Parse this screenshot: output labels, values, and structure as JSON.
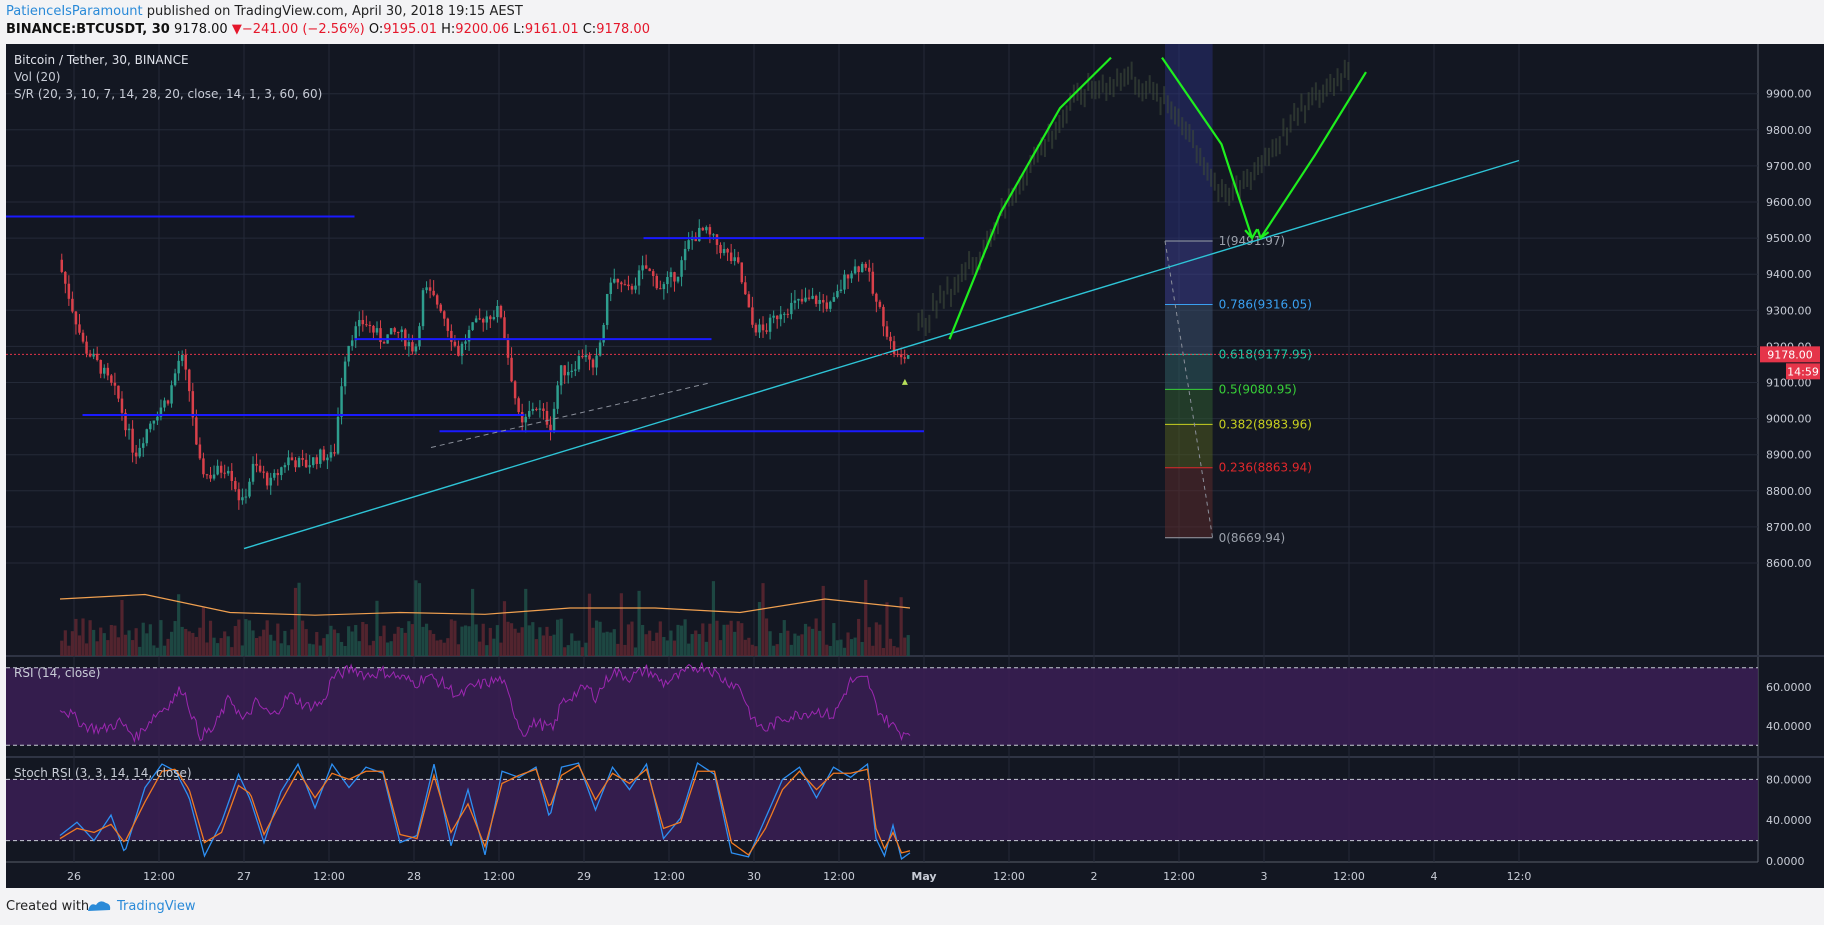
{
  "header": {
    "author": "PatienceIsParamount",
    "published": " published on TradingView.com, April 30, 2018 19:15 AEST",
    "symbol": "BINANCE:BTCUSDT, 30",
    "last": "9178.00",
    "change": "−241.00 (−2.56%)",
    "o_label": "O:",
    "o_val": "9195.01",
    "h_label": "H:",
    "h_val": "9200.06",
    "l_label": "L:",
    "l_val": "9161.01",
    "c_label": "C:",
    "c_val": "9178.00"
  },
  "legend": {
    "title": "Bitcoin / Tether, 30, BINANCE",
    "vol": "Vol (20)",
    "sr": "S/R (20, 3, 10, 7, 14, 28, 20, close, 14, 1, 3, 60, 60)",
    "rsi": "RSI (14, close)",
    "stoch": "Stoch RSI (3, 3, 14, 14, close)"
  },
  "colors": {
    "bg": "#131722",
    "up": "#2e9e8e",
    "down": "#d9404a",
    "sr_line": "#1a1aff",
    "trend": "#2ec4d6",
    "projection": "#1eee1e",
    "rsi": "#9c27b0",
    "stoch_k": "#2d8ff2",
    "stoch_d": "#f07a22",
    "vol_ma": "#f0a050",
    "price_tag": "#e5354a"
  },
  "footer": {
    "created": "Created with",
    "brand": "TradingView"
  },
  "chart_data": [
    {
      "type": "candlestick",
      "title": "Bitcoin / Tether, 30, BINANCE",
      "x_ticks": [
        "26",
        "12:00",
        "27",
        "12:00",
        "28",
        "12:00",
        "29",
        "12:00",
        "30",
        "12:00",
        "May",
        "12:00",
        "2",
        "12:00",
        "3",
        "12:00",
        "4",
        "12:0"
      ],
      "y_ticks": [
        "9900.00",
        "9800.00",
        "9700.00",
        "9600.00",
        "9500.00",
        "9400.00",
        "9300.00",
        "9200.00",
        "9100.00",
        "9000.00",
        "8900.00",
        "8800.00",
        "8700.00",
        "8600.00"
      ],
      "ylim": [
        8510,
        9990
      ],
      "last_price": "9178.00",
      "countdown": "14:59",
      "close_path": [
        [
          0,
          9440
        ],
        [
          0.15,
          9200
        ],
        [
          0.25,
          9140
        ],
        [
          0.35,
          9060
        ],
        [
          0.45,
          8900
        ],
        [
          0.55,
          9000
        ],
        [
          0.65,
          9060
        ],
        [
          0.72,
          9180
        ],
        [
          0.78,
          9060
        ],
        [
          0.82,
          8880
        ],
        [
          0.88,
          8840
        ],
        [
          1.0,
          8870
        ],
        [
          1.08,
          8760
        ],
        [
          1.15,
          8870
        ],
        [
          1.25,
          8820
        ],
        [
          1.35,
          8890
        ],
        [
          1.45,
          8870
        ],
        [
          1.55,
          8900
        ],
        [
          1.62,
          8890
        ],
        [
          1.68,
          9160
        ],
        [
          1.72,
          9230
        ],
        [
          1.8,
          9270
        ],
        [
          1.9,
          9220
        ],
        [
          2.0,
          9240
        ],
        [
          2.1,
          9190
        ],
        [
          2.15,
          9360
        ],
        [
          2.25,
          9310
        ],
        [
          2.35,
          9180
        ],
        [
          2.42,
          9240
        ],
        [
          2.5,
          9280
        ],
        [
          2.6,
          9300
        ],
        [
          2.72,
          8970
        ],
        [
          2.8,
          9040
        ],
        [
          2.9,
          8980
        ],
        [
          2.95,
          9130
        ],
        [
          3.02,
          9140
        ],
        [
          3.1,
          9190
        ],
        [
          3.15,
          9120
        ],
        [
          3.2,
          9240
        ],
        [
          3.25,
          9390
        ],
        [
          3.35,
          9350
        ],
        [
          3.45,
          9420
        ],
        [
          3.55,
          9360
        ],
        [
          3.65,
          9410
        ],
        [
          3.72,
          9500
        ],
        [
          3.8,
          9520
        ],
        [
          3.9,
          9470
        ],
        [
          4.0,
          9420
        ],
        [
          4.08,
          9260
        ],
        [
          4.15,
          9240
        ],
        [
          4.25,
          9300
        ],
        [
          4.35,
          9320
        ],
        [
          4.45,
          9330
        ],
        [
          4.55,
          9310
        ],
        [
          4.65,
          9410
        ],
        [
          4.75,
          9430
        ],
        [
          4.8,
          9330
        ],
        [
          4.85,
          9280
        ],
        [
          4.9,
          9200
        ],
        [
          4.95,
          9160
        ],
        [
          5.0,
          9178
        ]
      ],
      "volume_ma": [
        [
          0,
          570
        ],
        [
          0.5,
          575
        ],
        [
          1.0,
          555
        ],
        [
          1.5,
          552
        ],
        [
          2.0,
          555
        ],
        [
          2.5,
          553
        ],
        [
          3.0,
          560
        ],
        [
          3.5,
          560
        ],
        [
          4.0,
          555
        ],
        [
          4.5,
          570
        ],
        [
          5.0,
          560
        ]
      ]
    },
    {
      "type": "annotations",
      "support_resistance": [
        {
          "from": 0.0,
          "to": 1.65,
          "y": 9560
        },
        {
          "from": 3.75,
          "to": 5.0,
          "y": 9500
        },
        {
          "from": 2.05,
          "to": 3.75,
          "y": 9220
        },
        {
          "from": 0.45,
          "to": 2.65,
          "y": 9010
        },
        {
          "from": 2.55,
          "to": 5.0,
          "y": 8965
        }
      ],
      "trendline": {
        "start": [
          1.0,
          8640
        ],
        "end": [
          8.5,
          9715
        ]
      },
      "dashed_line": {
        "start": [
          2.1,
          8920
        ],
        "end": [
          3.75,
          9100
        ]
      },
      "projection_paths": [
        [
          [
            5.15,
            9220
          ],
          [
            5.45,
            9570
          ],
          [
            5.8,
            9860
          ],
          [
            6.1,
            10000
          ]
        ],
        [
          [
            6.4,
            10000
          ],
          [
            6.75,
            9760
          ],
          [
            6.93,
            9500
          ]
        ],
        [
          [
            6.98,
            9500
          ],
          [
            7.3,
            9730
          ],
          [
            7.6,
            9960
          ]
        ]
      ]
    },
    {
      "type": "fibonacci",
      "range": [
        6.5,
        6.78
      ],
      "levels": [
        {
          "label": "1(9491.97)",
          "value": 9491.97,
          "color": "#9aa0aa"
        },
        {
          "label": "0.786(9316.05)",
          "value": 9316.05,
          "color": "#3aa0f0"
        },
        {
          "label": "0.618(9177.95)",
          "value": 9177.95,
          "color": "#26c6a4"
        },
        {
          "label": "0.5(9080.95)",
          "value": 9080.95,
          "color": "#38d038"
        },
        {
          "label": "0.382(8983.96)",
          "value": 8983.96,
          "color": "#c8d020"
        },
        {
          "label": "0.236(8863.94)",
          "value": 8863.94,
          "color": "#e0282c"
        },
        {
          "label": "0(8669.94)",
          "value": 8669.94,
          "color": "#9aa0aa"
        }
      ]
    },
    {
      "type": "line",
      "title": "RSI (14, close)",
      "y_ticks": [
        "60.0000",
        "40.0000"
      ],
      "ylim": [
        25,
        75
      ],
      "bands": [
        70,
        30
      ],
      "path": [
        [
          0,
          50
        ],
        [
          0.15,
          40
        ],
        [
          0.25,
          38
        ],
        [
          0.35,
          42
        ],
        [
          0.45,
          34
        ],
        [
          0.55,
          45
        ],
        [
          0.65,
          52
        ],
        [
          0.72,
          60
        ],
        [
          0.78,
          45
        ],
        [
          0.82,
          35
        ],
        [
          0.9,
          38
        ],
        [
          1.0,
          55
        ],
        [
          1.08,
          42
        ],
        [
          1.15,
          52
        ],
        [
          1.25,
          45
        ],
        [
          1.35,
          56
        ],
        [
          1.45,
          50
        ],
        [
          1.55,
          52
        ],
        [
          1.6,
          65
        ],
        [
          1.68,
          68
        ],
        [
          1.72,
          70
        ],
        [
          1.8,
          66
        ],
        [
          1.9,
          68
        ],
        [
          2.0,
          65
        ],
        [
          2.1,
          62
        ],
        [
          2.15,
          66
        ],
        [
          2.25,
          62
        ],
        [
          2.35,
          55
        ],
        [
          2.42,
          60
        ],
        [
          2.5,
          62
        ],
        [
          2.6,
          64
        ],
        [
          2.72,
          36
        ],
        [
          2.8,
          42
        ],
        [
          2.9,
          38
        ],
        [
          2.95,
          52
        ],
        [
          3.02,
          56
        ],
        [
          3.1,
          60
        ],
        [
          3.15,
          55
        ],
        [
          3.25,
          68
        ],
        [
          3.35,
          65
        ],
        [
          3.45,
          69
        ],
        [
          3.55,
          62
        ],
        [
          3.65,
          66
        ],
        [
          3.72,
          70
        ],
        [
          3.8,
          71
        ],
        [
          3.9,
          64
        ],
        [
          4.0,
          60
        ],
        [
          4.08,
          42
        ],
        [
          4.15,
          38
        ],
        [
          4.25,
          44
        ],
        [
          4.35,
          46
        ],
        [
          4.45,
          48
        ],
        [
          4.55,
          45
        ],
        [
          4.65,
          63
        ],
        [
          4.75,
          64
        ],
        [
          4.8,
          50
        ],
        [
          4.85,
          44
        ],
        [
          4.9,
          40
        ],
        [
          4.95,
          36
        ],
        [
          5.0,
          38
        ]
      ]
    },
    {
      "type": "line",
      "title": "Stoch RSI (3, 3, 14, 14, close)",
      "y_ticks": [
        "80.0000",
        "40.0000",
        "0.0000"
      ],
      "ylim": [
        0,
        100
      ],
      "bands": [
        80,
        20
      ],
      "series": [
        {
          "key": "k",
          "path": [
            [
              0,
              25
            ],
            [
              0.1,
              38
            ],
            [
              0.2,
              20
            ],
            [
              0.3,
              45
            ],
            [
              0.38,
              8
            ],
            [
              0.5,
              72
            ],
            [
              0.6,
              95
            ],
            [
              0.68,
              88
            ],
            [
              0.76,
              62
            ],
            [
              0.85,
              5
            ],
            [
              0.95,
              38
            ],
            [
              1.05,
              85
            ],
            [
              1.12,
              60
            ],
            [
              1.2,
              18
            ],
            [
              1.3,
              68
            ],
            [
              1.4,
              95
            ],
            [
              1.5,
              52
            ],
            [
              1.6,
              95
            ],
            [
              1.7,
              72
            ],
            [
              1.8,
              92
            ],
            [
              1.9,
              86
            ],
            [
              2.0,
              18
            ],
            [
              2.1,
              25
            ],
            [
              2.2,
              95
            ],
            [
              2.3,
              15
            ],
            [
              2.4,
              70
            ],
            [
              2.5,
              6
            ],
            [
              2.6,
              88
            ],
            [
              2.7,
              82
            ],
            [
              2.8,
              92
            ],
            [
              2.88,
              42
            ],
            [
              2.95,
              92
            ],
            [
              3.05,
              96
            ],
            [
              3.15,
              50
            ],
            [
              3.25,
              92
            ],
            [
              3.35,
              70
            ],
            [
              3.45,
              95
            ],
            [
              3.55,
              22
            ],
            [
              3.65,
              42
            ],
            [
              3.75,
              96
            ],
            [
              3.85,
              85
            ],
            [
              3.95,
              8
            ],
            [
              4.05,
              4
            ],
            [
              4.15,
              42
            ],
            [
              4.25,
              80
            ],
            [
              4.35,
              92
            ],
            [
              4.45,
              62
            ],
            [
              4.55,
              92
            ],
            [
              4.65,
              82
            ],
            [
              4.75,
              95
            ],
            [
              4.8,
              22
            ],
            [
              4.85,
              5
            ],
            [
              4.9,
              35
            ],
            [
              4.95,
              2
            ],
            [
              5.0,
              8
            ]
          ]
        },
        {
          "key": "d",
          "path": [
            [
              0,
              22
            ],
            [
              0.1,
              32
            ],
            [
              0.2,
              28
            ],
            [
              0.3,
              36
            ],
            [
              0.38,
              18
            ],
            [
              0.5,
              58
            ],
            [
              0.6,
              88
            ],
            [
              0.68,
              90
            ],
            [
              0.76,
              70
            ],
            [
              0.85,
              18
            ],
            [
              0.95,
              28
            ],
            [
              1.05,
              74
            ],
            [
              1.12,
              66
            ],
            [
              1.2,
              26
            ],
            [
              1.3,
              58
            ],
            [
              1.4,
              88
            ],
            [
              1.5,
              62
            ],
            [
              1.6,
              86
            ],
            [
              1.7,
              80
            ],
            [
              1.8,
              88
            ],
            [
              1.9,
              88
            ],
            [
              2.0,
              26
            ],
            [
              2.1,
              22
            ],
            [
              2.2,
              84
            ],
            [
              2.3,
              28
            ],
            [
              2.4,
              56
            ],
            [
              2.5,
              14
            ],
            [
              2.6,
              76
            ],
            [
              2.7,
              84
            ],
            [
              2.8,
              90
            ],
            [
              2.88,
              52
            ],
            [
              2.95,
              84
            ],
            [
              3.05,
              94
            ],
            [
              3.15,
              60
            ],
            [
              3.25,
              86
            ],
            [
              3.35,
              76
            ],
            [
              3.45,
              90
            ],
            [
              3.55,
              32
            ],
            [
              3.65,
              38
            ],
            [
              3.75,
              88
            ],
            [
              3.85,
              88
            ],
            [
              3.95,
              18
            ],
            [
              4.05,
              6
            ],
            [
              4.15,
              32
            ],
            [
              4.25,
              70
            ],
            [
              4.35,
              88
            ],
            [
              4.45,
              70
            ],
            [
              4.55,
              86
            ],
            [
              4.65,
              86
            ],
            [
              4.75,
              90
            ],
            [
              4.8,
              32
            ],
            [
              4.85,
              12
            ],
            [
              4.9,
              28
            ],
            [
              4.95,
              8
            ],
            [
              5.0,
              10
            ]
          ]
        }
      ]
    }
  ]
}
